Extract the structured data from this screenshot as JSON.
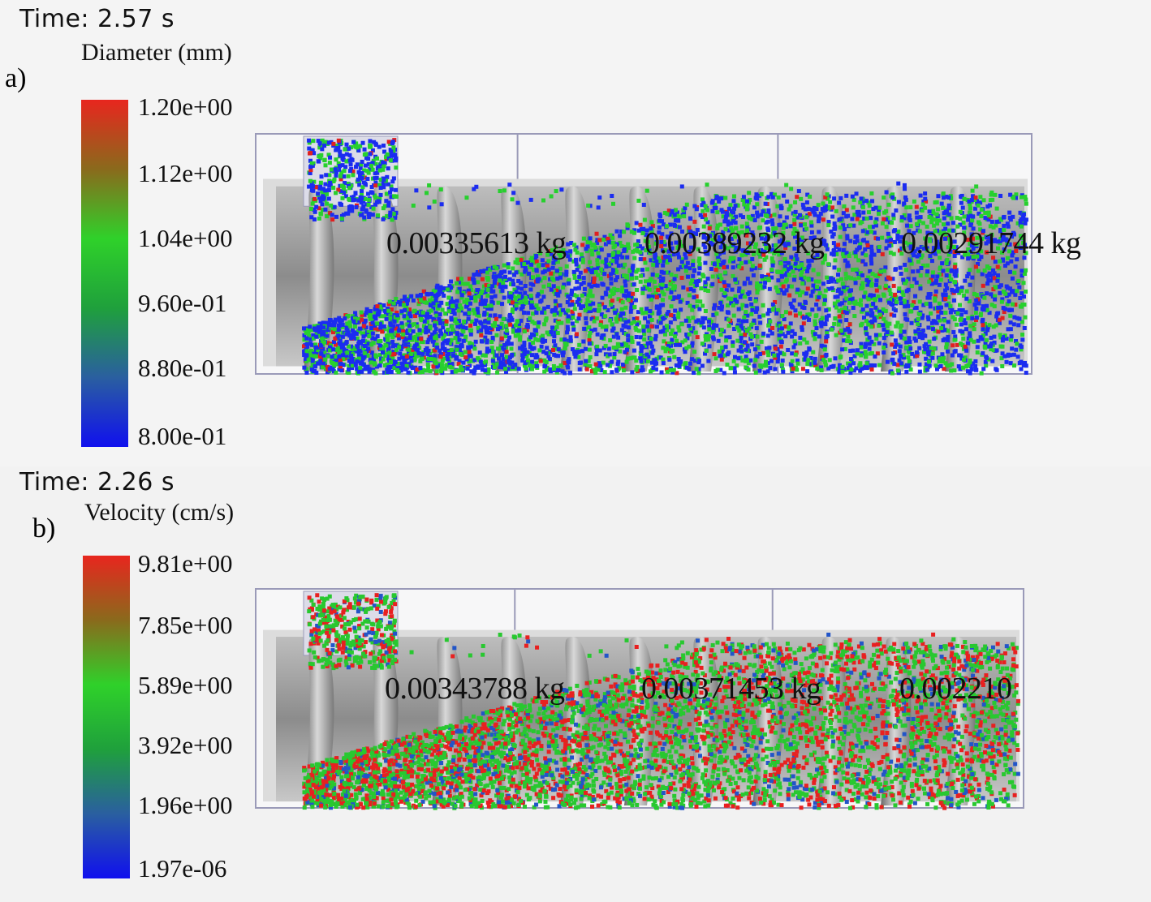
{
  "panel_a": {
    "label": "a)",
    "time": "Time: 2.57 s",
    "quantity": "Diameter (mm)",
    "colorbar_ticks": [
      "1.20e+00",
      "1.12e+00",
      "1.04e+00",
      "9.60e-01",
      "8.80e-01",
      "8.00e-01"
    ],
    "colorbar_colors": [
      "#e8261e",
      "#8a6a1c",
      "#2fd12a",
      "#1fa03c",
      "#2a5fa0",
      "#1010ee"
    ],
    "masses": [
      "0.00335613 kg",
      "0.00389232 kg",
      "0.00291744 kg"
    ],
    "particle_colors": [
      "#1b2cf0",
      "#27d02e",
      "#e02020"
    ]
  },
  "panel_b": {
    "label": "b)",
    "time": "Time: 2.26 s",
    "quantity": "Velocity (cm/s)",
    "colorbar_ticks": [
      "9.81e+00",
      "7.85e+00",
      "5.89e+00",
      "3.92e+00",
      "1.96e+00",
      "1.97e-06"
    ],
    "colorbar_colors": [
      "#e8261e",
      "#8a6a1c",
      "#2fd12a",
      "#1fa03c",
      "#2a5fa0",
      "#1010ee"
    ],
    "masses": [
      "0.00343788 kg",
      "0.00371453 kg",
      "0.002210"
    ],
    "particle_colors": [
      "#e82020",
      "#28c830",
      "#2255c8"
    ]
  }
}
